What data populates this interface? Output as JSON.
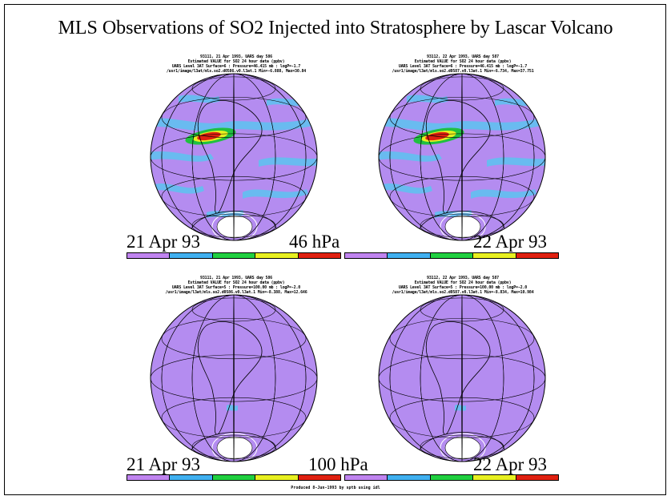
{
  "title": "MLS Observations of SO2 Injected into Stratosphere by Lascar Volcano",
  "panels": [
    {
      "date": "21 Apr 93",
      "header": [
        "93111, 21 Apr 1993, UARS day 586",
        "Estimated VALUE for SO2 24 hour data (ppbv)",
        "UARS Level 3AT Surface=6 : Pressure=46.415 mb : logP=-1.7",
        "/usr1/image/l3at/mls.so2.d0586.v0.l3at.1 Min=-6.888, Max=30.84"
      ]
    },
    {
      "date": "22 Apr 93",
      "header": [
        "93112, 22 Apr 1993, UARS day 587",
        "Estimated VALUE for SO2 24 hour data (ppbv)",
        "UARS Level 3AT Surface=6 : Pressure=46.415 mb : logP=-1.7",
        "/usr1/image/l3at/mls.so2.d0587.v0.l3at.1 Min=-6.734, Max=37.751"
      ]
    },
    {
      "date": "21 Apr 93",
      "header": [
        "93111, 21 Apr 1993, UARS day 586",
        "Estimated VALUE for SO2 24 hour data (ppbv)",
        "UARS Level 3AT Surface=5 : Pressure=100.00 mb : logP=-2.0",
        "/usr1/image/l3at/mls.so2.d0586.v0.l3at.1 Min=-8.388, Max=12.646"
      ]
    },
    {
      "date": "22 Apr 93",
      "header": [
        "93112, 22 Apr 1993, UARS day 587",
        "Estimated VALUE for SO2 24 hour data (ppbv)",
        "UARS Level 3AT Surface=5 : Pressure=100.00 mb : logP=-2.0",
        "/usr1/image/l3at/mls.so2.d0587.v0.l3at.1 Min=-8.834, Max=10.984"
      ]
    }
  ],
  "pressure_labels": {
    "top": "46 hPa",
    "bottom": "100 hPa"
  },
  "colorbar": {
    "colors": [
      "#c084f0",
      "#40b0f0",
      "#20d040",
      "#e8f020",
      "#e02010"
    ],
    "ticks": [
      "5.00",
      "15.0",
      "25.0",
      "35.0"
    ]
  },
  "map_colors": {
    "background": "#b48cf0",
    "enhanced": "#60c0f0",
    "moderate": "#20c040",
    "high": "#e8f020",
    "peak": "#e02010"
  },
  "footer": "Produced 8-Jun-1993 by sptb using idl"
}
